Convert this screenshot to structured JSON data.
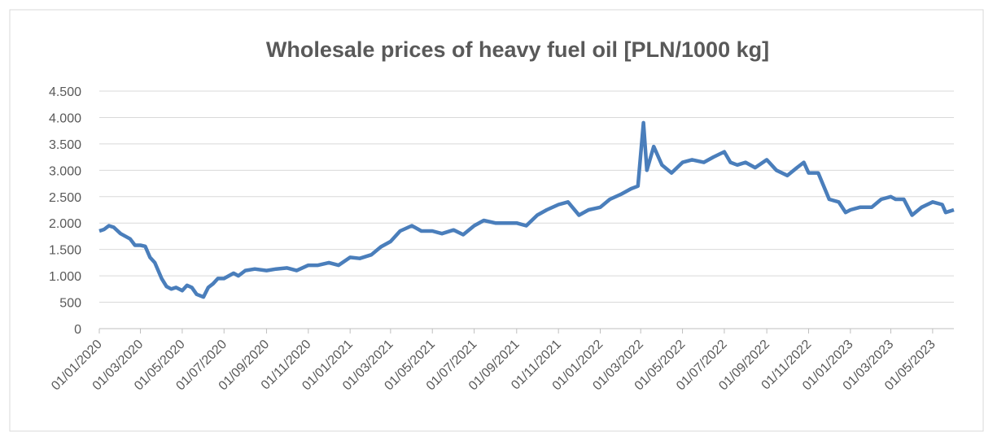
{
  "chart_data": {
    "type": "line",
    "title": "Wholesale prices of heavy fuel oil [PLN/1000 kg]",
    "series": [
      {
        "name": "Wholesale prices of heavy fuel oil",
        "color": "#4a7ebb",
        "x": [
          "2020-01-01",
          "2020-01-08",
          "2020-01-15",
          "2020-01-22",
          "2020-02-01",
          "2020-02-15",
          "2020-02-22",
          "2020-03-01",
          "2020-03-08",
          "2020-03-15",
          "2020-03-22",
          "2020-04-01",
          "2020-04-08",
          "2020-04-15",
          "2020-04-22",
          "2020-05-01",
          "2020-05-08",
          "2020-05-15",
          "2020-05-22",
          "2020-06-01",
          "2020-06-08",
          "2020-06-15",
          "2020-06-22",
          "2020-07-01",
          "2020-07-15",
          "2020-07-22",
          "2020-08-01",
          "2020-08-15",
          "2020-09-01",
          "2020-09-15",
          "2020-10-01",
          "2020-10-15",
          "2020-11-01",
          "2020-11-15",
          "2020-12-01",
          "2020-12-15",
          "2021-01-01",
          "2021-01-15",
          "2021-02-01",
          "2021-02-15",
          "2021-03-01",
          "2021-03-15",
          "2021-04-01",
          "2021-04-15",
          "2021-05-01",
          "2021-05-15",
          "2021-06-01",
          "2021-06-15",
          "2021-07-01",
          "2021-07-15",
          "2021-08-01",
          "2021-08-15",
          "2021-09-01",
          "2021-09-15",
          "2021-10-01",
          "2021-10-15",
          "2021-11-01",
          "2021-11-15",
          "2021-12-01",
          "2021-12-15",
          "2022-01-01",
          "2022-01-15",
          "2022-02-01",
          "2022-02-15",
          "2022-02-25",
          "2022-03-05",
          "2022-03-10",
          "2022-03-20",
          "2022-04-01",
          "2022-04-15",
          "2022-05-01",
          "2022-05-15",
          "2022-06-01",
          "2022-06-15",
          "2022-07-01",
          "2022-07-10",
          "2022-07-20",
          "2022-08-01",
          "2022-08-15",
          "2022-09-01",
          "2022-09-15",
          "2022-10-01",
          "2022-10-15",
          "2022-10-25",
          "2022-11-01",
          "2022-11-15",
          "2022-12-01",
          "2022-12-15",
          "2022-12-25",
          "2023-01-01",
          "2023-01-15",
          "2023-02-01",
          "2023-02-15",
          "2023-03-01",
          "2023-03-08",
          "2023-03-20",
          "2023-04-01",
          "2023-04-15",
          "2023-05-01",
          "2023-05-15",
          "2023-05-20",
          "2023-06-01"
        ],
        "values": [
          1850,
          1880,
          1950,
          1920,
          1800,
          1700,
          1580,
          1580,
          1560,
          1350,
          1250,
          950,
          800,
          750,
          780,
          720,
          820,
          780,
          650,
          600,
          780,
          850,
          950,
          950,
          1050,
          1000,
          1100,
          1130,
          1100,
          1130,
          1150,
          1100,
          1200,
          1200,
          1250,
          1200,
          1350,
          1330,
          1400,
          1550,
          1650,
          1850,
          1950,
          1850,
          1850,
          1800,
          1870,
          1780,
          1950,
          2050,
          2000,
          2000,
          2000,
          1950,
          2150,
          2250,
          2350,
          2400,
          2150,
          2250,
          2300,
          2450,
          2550,
          2650,
          2700,
          3900,
          3000,
          3450,
          3100,
          2950,
          3150,
          3200,
          3150,
          3250,
          3350,
          3150,
          3100,
          3150,
          3050,
          3200,
          3000,
          2900,
          3050,
          3150,
          2950,
          2950,
          2450,
          2400,
          2200,
          2250,
          2300,
          2300,
          2450,
          2500,
          2450,
          2450,
          2150,
          2300,
          2400,
          2350,
          2200,
          2250
        ]
      }
    ],
    "xlim": [
      "2020-01-01",
      "2023-06-01"
    ],
    "xticks": [
      {
        "value": "2020-01-01",
        "label": "01/01/2020"
      },
      {
        "value": "2020-03-01",
        "label": "01/03/2020"
      },
      {
        "value": "2020-05-01",
        "label": "01/05/2020"
      },
      {
        "value": "2020-07-01",
        "label": "01/07/2020"
      },
      {
        "value": "2020-09-01",
        "label": "01/09/2020"
      },
      {
        "value": "2020-11-01",
        "label": "01/11/2020"
      },
      {
        "value": "2021-01-01",
        "label": "01/01/2021"
      },
      {
        "value": "2021-03-01",
        "label": "01/03/2021"
      },
      {
        "value": "2021-05-01",
        "label": "01/05/2021"
      },
      {
        "value": "2021-07-01",
        "label": "01/07/2021"
      },
      {
        "value": "2021-09-01",
        "label": "01/09/2021"
      },
      {
        "value": "2021-11-01",
        "label": "01/11/2021"
      },
      {
        "value": "2022-01-01",
        "label": "01/01/2022"
      },
      {
        "value": "2022-03-01",
        "label": "01/03/2022"
      },
      {
        "value": "2022-05-01",
        "label": "01/05/2022"
      },
      {
        "value": "2022-07-01",
        "label": "01/07/2022"
      },
      {
        "value": "2022-09-01",
        "label": "01/09/2022"
      },
      {
        "value": "2022-11-01",
        "label": "01/11/2022"
      },
      {
        "value": "2023-01-01",
        "label": "01/01/2023"
      },
      {
        "value": "2023-03-01",
        "label": "01/03/2023"
      },
      {
        "value": "2023-05-01",
        "label": "01/05/2023"
      }
    ],
    "ylim": [
      0,
      4500
    ],
    "yticks": [
      0,
      500,
      {
        "value": 1000,
        "label": "1.000"
      },
      {
        "value": 1500,
        "label": "1.500"
      },
      {
        "value": 2000,
        "label": "2.000"
      },
      {
        "value": 2500,
        "label": "2.500"
      },
      {
        "value": 3000,
        "label": "3.000"
      },
      {
        "value": 3500,
        "label": "3.500"
      },
      {
        "value": 4000,
        "label": "4.000"
      },
      {
        "value": 4500,
        "label": "4.500"
      }
    ],
    "grid": true
  }
}
